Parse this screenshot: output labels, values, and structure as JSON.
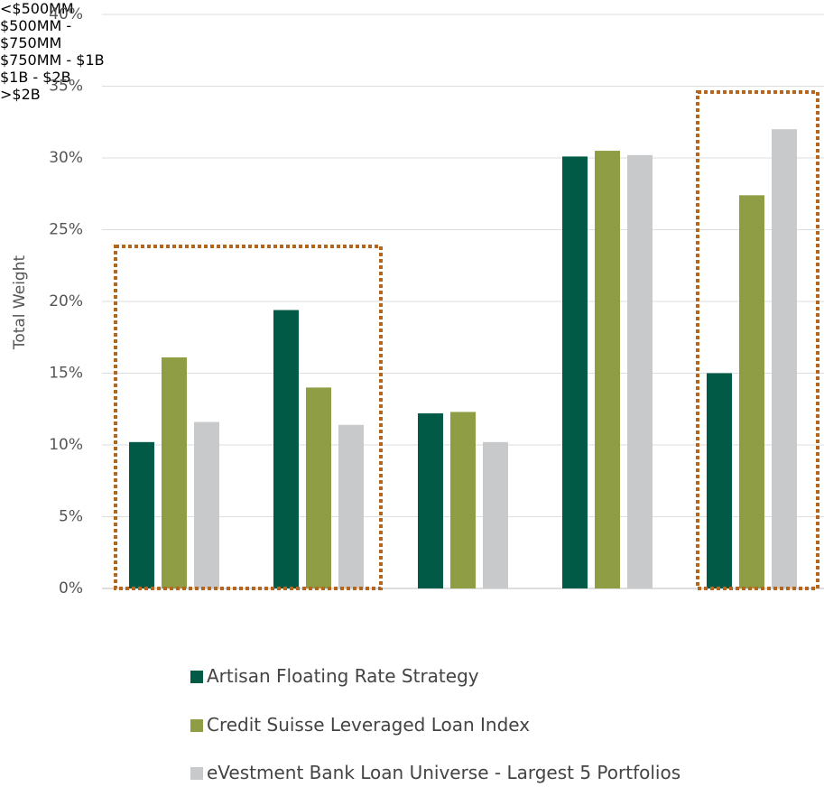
{
  "chart_data": {
    "type": "bar",
    "y_label": "Total Weight",
    "categories": [
      "<$500MM",
      "$500MM - $750MM",
      "$750MM - $1B",
      "$1B - $2B",
      ">$2B"
    ],
    "series": [
      {
        "name": "Artisan Floating Rate Strategy",
        "color": "#005a46",
        "values": [
          10.2,
          19.4,
          12.2,
          30.1,
          15.0
        ]
      },
      {
        "name": "Credit Suisse Leveraged Loan Index",
        "color": "#8f9d44",
        "values": [
          16.1,
          14.0,
          12.3,
          30.5,
          27.4
        ]
      },
      {
        "name": "eVestment Bank Loan Universe - Largest 5 Portfolios",
        "color": "#c8c9cb",
        "values": [
          11.6,
          11.4,
          10.2,
          30.2,
          32.0
        ]
      }
    ],
    "ylim": [
      0,
      40
    ],
    "yticks": [
      {
        "value": 0,
        "label": "0%"
      },
      {
        "value": 5,
        "label": "5%"
      },
      {
        "value": 10,
        "label": "10%"
      },
      {
        "value": 15,
        "label": "15%"
      },
      {
        "value": 20,
        "label": "20%"
      },
      {
        "value": 25,
        "label": "25%"
      },
      {
        "value": 30,
        "label": "30%"
      },
      {
        "value": 35,
        "label": "35%"
      },
      {
        "value": 40,
        "label": "40%"
      }
    ],
    "grid": true,
    "legend": "bottom"
  }
}
